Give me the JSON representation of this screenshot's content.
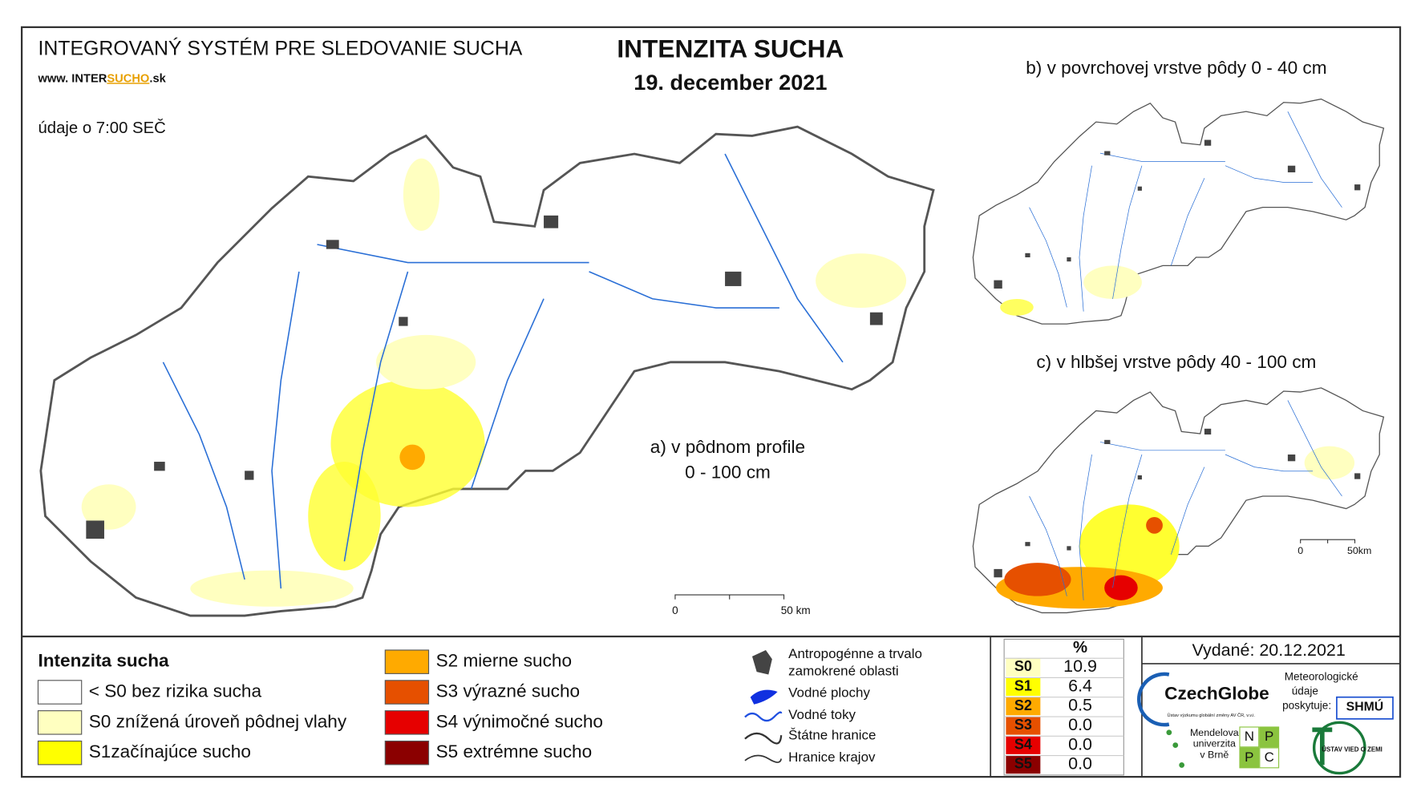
{
  "header": {
    "system": "INTEGROVANÝ SYSTÉM PRE SLEDOVANIE SUCHA",
    "web_prefix": "www. INTER",
    "web_brand": "SUCHO",
    "web_suffix": ".sk",
    "time_note": "údaje o 7:00 SEČ",
    "title": "INTENZITA SUCHA",
    "date": "19. december 2021"
  },
  "maps": {
    "a": {
      "label": "a) v pôdnom profile",
      "depth": "0 - 100 cm",
      "scale_zero": "0",
      "scale_end": "50 km"
    },
    "b": {
      "label": "b) v povrchovej vrstve pôdy 0 - 40 cm"
    },
    "c": {
      "label": "c) v hlbšej vrstve pôdy 40 - 100 cm",
      "scale_zero": "0",
      "scale_end": "50km"
    }
  },
  "legend": {
    "title": "Intenzita sucha",
    "items": [
      {
        "label": "< S0 bez rizika sucha",
        "color": "#ffffff"
      },
      {
        "label": "S0 znížená úroveň pôdnej vlahy",
        "color": "#ffffc0"
      },
      {
        "label": "S1začínajúce sucho",
        "color": "#ffff00"
      },
      {
        "label": "S2 mierne sucho",
        "color": "#ffaa00"
      },
      {
        "label": "S3 výrazné sucho",
        "color": "#e65000"
      },
      {
        "label": "S4 výnimočné sucho",
        "color": "#e60000"
      },
      {
        "label": "S5 extrémne sucho",
        "color": "#8b0000"
      }
    ]
  },
  "symbols": {
    "urban": "Antropogénne a trvalo",
    "urban2": "zamokrené oblasti",
    "water": "Vodné plochy",
    "rivers": "Vodné toky",
    "state": "Štátne hranice",
    "regions": "Hranice krajov"
  },
  "stats": {
    "header": "%",
    "rows": [
      {
        "class": "S0",
        "value": "10.9",
        "color": "#ffffc0"
      },
      {
        "class": "S1",
        "value": "6.4",
        "color": "#ffff00"
      },
      {
        "class": "S2",
        "value": "0.5",
        "color": "#ffaa00"
      },
      {
        "class": "S3",
        "value": "0.0",
        "color": "#e65000"
      },
      {
        "class": "S4",
        "value": "0.0",
        "color": "#e60000"
      },
      {
        "class": "S5",
        "value": "0.0",
        "color": "#8b0000"
      }
    ]
  },
  "issued": "Vydané: 20.12.2021",
  "logos": {
    "czechglobe": "CzechGlobe",
    "czechglobe_sub": "Ústav výzkumu globální změny AV ČR, v.v.i.",
    "meteo1": "Meteorologické",
    "meteo2": "údaje",
    "meteo3": "poskytuje:",
    "shmu": "SHMÚ",
    "mendel1": "Mendelova",
    "mendel2": "univerzita",
    "mendel3": "v Brně",
    "nppc": [
      "N",
      "P",
      "P",
      "C"
    ],
    "uvz": "ÚSTAV VIED O ZEMI"
  }
}
